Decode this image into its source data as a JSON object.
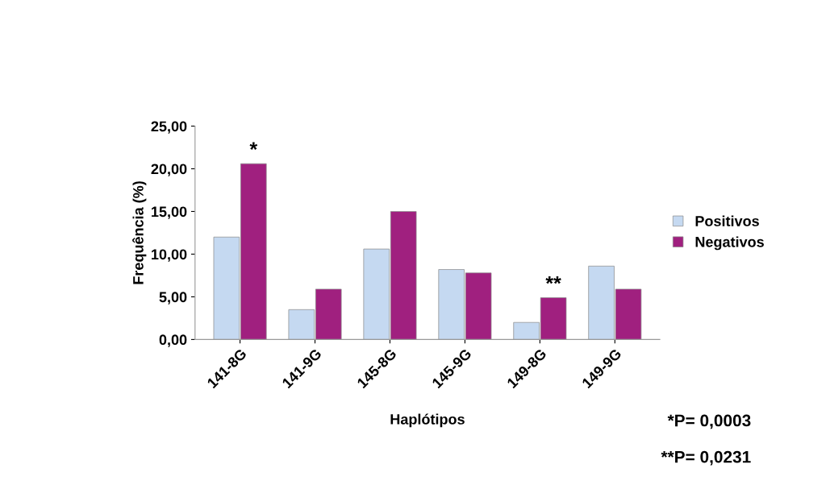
{
  "chart_data": {
    "type": "bar",
    "xlabel": "Haplótipos",
    "ylabel": "Frequência (%)",
    "categories": [
      "141-8G",
      "141-9G",
      "145-8G",
      "145-9G",
      "149-8G",
      "149-9G"
    ],
    "series": [
      {
        "name": "Positivos",
        "color": "#c5d9f1",
        "values": [
          12.0,
          3.5,
          10.6,
          8.2,
          2.0,
          8.6
        ]
      },
      {
        "name": "Negativos",
        "color": "#a0207f",
        "values": [
          20.6,
          5.9,
          15.0,
          7.8,
          4.9,
          5.9
        ]
      }
    ],
    "ylim": [
      0,
      25
    ],
    "yticks": [
      {
        "value": 0,
        "label": "0,00"
      },
      {
        "value": 5,
        "label": "5,00"
      },
      {
        "value": 10,
        "label": "10,00"
      },
      {
        "value": 15,
        "label": "15,00"
      },
      {
        "value": 20,
        "label": "20,00"
      },
      {
        "value": 25,
        "label": "25,00"
      }
    ],
    "grid": false,
    "legend": "right",
    "annotations": [
      {
        "text": "*",
        "x": "141-8G",
        "y": 20.6
      },
      {
        "text": "**",
        "x": "149-8G",
        "y": 4.9
      },
      "*P= 0,0003",
      "**P= 0,0231"
    ]
  }
}
